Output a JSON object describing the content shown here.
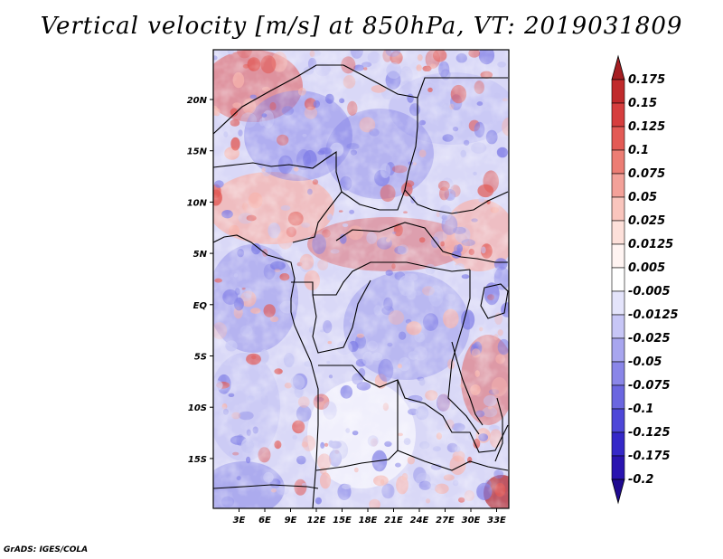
{
  "title": "Vertical velocity [m/s] at 850hPa, VT: 2019031809",
  "credit": "GrADS: IGES/COLA",
  "map": {
    "lat_ticks": [
      "20N",
      "15N",
      "10N",
      "5N",
      "EQ",
      "5S",
      "10S",
      "15S"
    ],
    "lon_ticks": [
      "3E",
      "6E",
      "9E",
      "12E",
      "15E",
      "18E",
      "21E",
      "24E",
      "27E",
      "30E",
      "33E"
    ]
  },
  "colorbar": {
    "labels": [
      "0.175",
      "0.15",
      "0.125",
      "0.1",
      "0.075",
      "0.05",
      "0.025",
      "0.0125",
      "0.005",
      "-0.005",
      "-0.0125",
      "-0.025",
      "-0.05",
      "-0.075",
      "-0.1",
      "-0.125",
      "-0.175",
      "-0.2"
    ],
    "colors": [
      "#a51e22",
      "#c02a2c",
      "#d63e3e",
      "#e35a55",
      "#ec7d74",
      "#f3a199",
      "#f9c5bd",
      "#fde0da",
      "#fff4f2",
      "#ffffff",
      "#e4e4fb",
      "#c7c6f6",
      "#a8a6ef",
      "#8a86e8",
      "#6b66e0",
      "#4e47d8",
      "#3528c8",
      "#2a14b0",
      "#1f0a90"
    ]
  },
  "palette": {
    "red_strong": "#e25a55",
    "red_light": "#f6b4ad",
    "blue_strong": "#7f7de6",
    "blue_light": "#c6c6f4"
  }
}
